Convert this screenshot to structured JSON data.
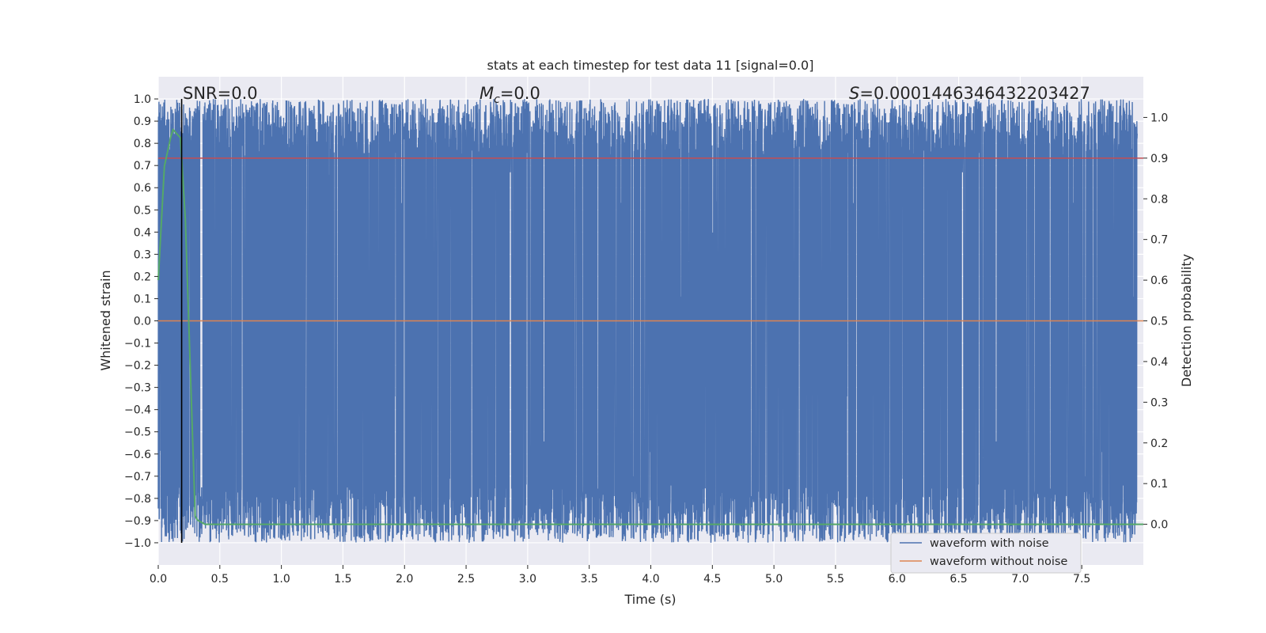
{
  "chart_data": {
    "type": "line",
    "title": "stats at each timestep for test data 11 [signal=0.0]",
    "xlabel": "Time (s)",
    "ylabel": "Whitened strain",
    "y2label": "Detection probability",
    "xlim": [
      0.0,
      8.0
    ],
    "ylim": [
      -1.1,
      1.1
    ],
    "y2lim": [
      -0.1,
      1.1
    ],
    "xticks": [
      "0.0",
      "0.5",
      "1.0",
      "1.5",
      "2.0",
      "2.5",
      "3.0",
      "3.5",
      "4.0",
      "4.5",
      "5.0",
      "5.5",
      "6.0",
      "6.5",
      "7.0",
      "7.5"
    ],
    "yticks": [
      "1.0",
      "0.9",
      "0.8",
      "0.7",
      "0.6",
      "0.5",
      "0.4",
      "0.3",
      "0.2",
      "0.1",
      "0.0",
      "−0.1",
      "−0.2",
      "−0.3",
      "−0.4",
      "−0.5",
      "−0.6",
      "−0.7",
      "−0.8",
      "−0.9",
      "−1.0"
    ],
    "y2ticks": [
      "1.0",
      "0.9",
      "0.8",
      "0.7",
      "0.6",
      "0.5",
      "0.4",
      "0.3",
      "0.2",
      "0.1",
      "0.0"
    ],
    "grid": true,
    "legend_position": "lower-right",
    "series": [
      {
        "name": "waveform with noise",
        "color": "#4c72b0",
        "description_values": "dense noise oscillating between -1.0 and 1.0 over 0.0–8.0 s"
      },
      {
        "name": "waveform without noise",
        "color": "#dd8452",
        "values_x": [
          0.0,
          8.0
        ],
        "values_y": [
          0.0,
          0.0
        ]
      }
    ],
    "detection_probability": {
      "color": "#55a868",
      "x": [
        0.0,
        0.05,
        0.1,
        0.12,
        0.18,
        0.22,
        0.3,
        0.32,
        0.38,
        8.0
      ],
      "y": [
        0.6,
        0.88,
        0.95,
        0.97,
        0.95,
        0.75,
        0.02,
        0.01,
        0.0,
        0.0
      ]
    },
    "threshold_line": {
      "color": "#c44e52",
      "y2": 0.9
    },
    "marker_line": {
      "color": "#000000",
      "x": 0.19
    },
    "annotations": [
      {
        "id": "snr",
        "text": "SNR=0.0"
      },
      {
        "id": "mc",
        "text_prefix": "M",
        "text_sub": "c",
        "text_suffix": "=0.0"
      },
      {
        "id": "s",
        "text_prefix": "S",
        "text_suffix": "=0.0001446346432203427"
      }
    ]
  }
}
